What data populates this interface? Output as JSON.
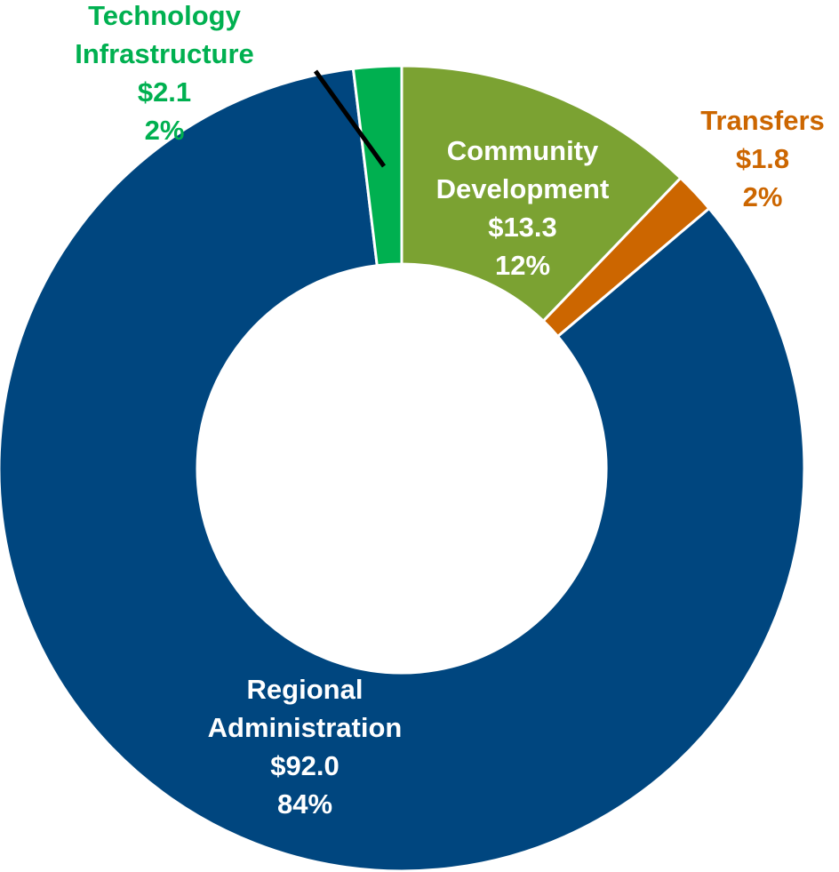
{
  "chart_data": {
    "type": "donut",
    "categories": [
      "Community Development",
      "Transfers",
      "Regional Administration",
      "Technology Infrastructure"
    ],
    "values": [
      13.3,
      1.8,
      92,
      2.1
    ],
    "value_labels": [
      "$13.3",
      "$1.8",
      "$92.0",
      "$2.1"
    ],
    "percents": [
      12,
      2,
      84,
      2
    ],
    "percent_labels": [
      "12%",
      "2%",
      "84%",
      "2%"
    ],
    "colors": [
      "#7ba232",
      "#cc6600",
      "#00467f",
      "#00b050"
    ],
    "label_colors": [
      "#ffffff",
      "#cc6600",
      "#ffffff",
      "#00b050"
    ]
  }
}
